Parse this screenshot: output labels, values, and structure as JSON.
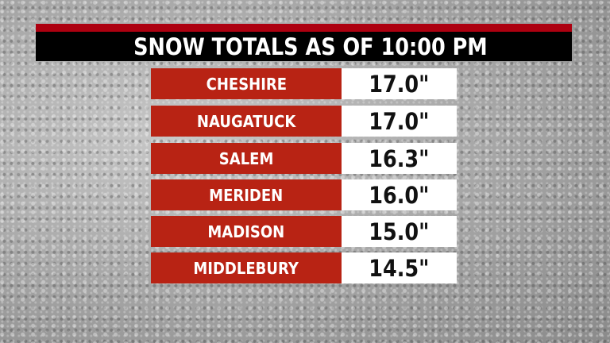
{
  "header": {
    "title": "SNOW TOTALS AS OF 10:00 PM"
  },
  "colors": {
    "accent_red": "#ad0010",
    "row_red": "#b82314",
    "title_bg": "#000000"
  },
  "rows": [
    {
      "town": "CHESHIRE",
      "total": "17.0\""
    },
    {
      "town": "NAUGATUCK",
      "total": "17.0\""
    },
    {
      "town": "SALEM",
      "total": "16.3\""
    },
    {
      "town": "MERIDEN",
      "total": "16.0\""
    },
    {
      "town": "MADISON",
      "total": "15.0\""
    },
    {
      "town": "MIDDLEBURY",
      "total": "14.5\""
    }
  ]
}
